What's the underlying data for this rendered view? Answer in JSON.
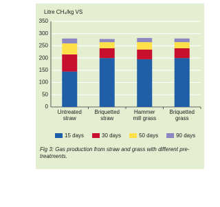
{
  "chart_data": {
    "type": "stacked-bar",
    "y_label": "Litre CH₄/kg VS",
    "categories": [
      [
        "Untreated",
        "straw"
      ],
      [
        "Briquetted",
        "straw"
      ],
      [
        "Hammer",
        "mill grass"
      ],
      [
        "Briquetted",
        "grass"
      ]
    ],
    "series": [
      {
        "name": "15 days",
        "color": "#1f5fa8",
        "values": [
          145,
          200,
          195,
          200
        ]
      },
      {
        "name": "30 days",
        "color": "#c8102e",
        "values": [
          70,
          40,
          40,
          40
        ]
      },
      {
        "name": "50 days",
        "color": "#ffe04a",
        "values": [
          45,
          25,
          30,
          25
        ]
      },
      {
        "name": "90 days",
        "color": "#8e86c2",
        "values": [
          20,
          13,
          17,
          15
        ]
      }
    ],
    "ylim": [
      0,
      350
    ],
    "yticks": [
      0,
      50,
      100,
      150,
      200,
      250,
      300,
      350
    ],
    "grid": true,
    "caption": "Fig 3: Gas production from straw and grass with different pre-treatments."
  }
}
